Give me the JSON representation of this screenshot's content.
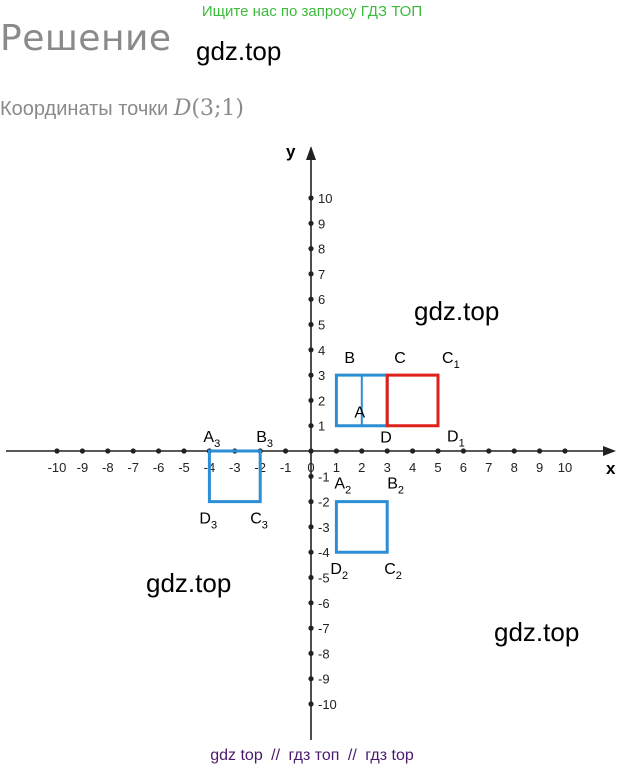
{
  "banner": "Ищите нас по запросу ГДЗ ТОП",
  "heading": "Решение",
  "subtitle": {
    "prefix": "Координаты точки",
    "point_letter": "D",
    "point_coords": "(3;1)"
  },
  "watermarks": [
    "gdz.top",
    "gdz.top",
    "gdz.top",
    "gdz.top"
  ],
  "bottom_links": [
    "gdz top",
    "//",
    "гдз топ",
    "//",
    "гдз top"
  ],
  "colors": {
    "blue": "#2c8fd6",
    "red": "#e0211b",
    "banner_green": "#3dbb3d",
    "link_purple": "#4a1a6e"
  },
  "chart_data": {
    "type": "diagram",
    "axes": {
      "x_label": "x",
      "y_label": "y",
      "x_range": [
        -10,
        10
      ],
      "y_range": [
        -10,
        10
      ],
      "x_ticks": [
        -10,
        -9,
        -8,
        -7,
        -6,
        -5,
        -4,
        -3,
        -2,
        -1,
        0,
        1,
        2,
        3,
        4,
        5,
        6,
        7,
        8,
        9,
        10
      ],
      "y_ticks": [
        -10,
        -9,
        -8,
        -7,
        -6,
        -5,
        -4,
        -3,
        -2,
        -1,
        1,
        2,
        3,
        4,
        5,
        6,
        7,
        8,
        9,
        10
      ]
    },
    "polygons": [
      {
        "vertices": [
          [
            1,
            3
          ],
          [
            3,
            3
          ],
          [
            3,
            1
          ],
          [
            1,
            1
          ]
        ],
        "color": "blue"
      },
      {
        "vertices": [
          [
            3,
            3
          ],
          [
            5,
            3
          ],
          [
            5,
            1
          ],
          [
            3,
            1
          ]
        ],
        "color": "red"
      },
      {
        "vertices": [
          [
            1,
            -2
          ],
          [
            3,
            -2
          ],
          [
            3,
            -4
          ],
          [
            1,
            -4
          ]
        ],
        "color": "blue"
      },
      {
        "vertices": [
          [
            -4,
            0
          ],
          [
            -2,
            0
          ],
          [
            -2,
            -2
          ],
          [
            -4,
            -2
          ]
        ],
        "color": "blue"
      }
    ],
    "inner_line": {
      "from": [
        2,
        3
      ],
      "to": [
        2,
        1
      ],
      "color": "blue"
    },
    "points": [
      {
        "name": "A",
        "sub": "",
        "x": 1,
        "y": 1
      },
      {
        "name": "B",
        "sub": "",
        "x": 1,
        "y": 3
      },
      {
        "name": "C",
        "sub": "",
        "x": 3,
        "y": 3
      },
      {
        "name": "D",
        "sub": "",
        "x": 3,
        "y": 1
      },
      {
        "name": "C",
        "sub": "1",
        "x": 5,
        "y": 3
      },
      {
        "name": "D",
        "sub": "1",
        "x": 5,
        "y": 1
      },
      {
        "name": "A",
        "sub": "2",
        "x": 1,
        "y": -2
      },
      {
        "name": "B",
        "sub": "2",
        "x": 3,
        "y": -2
      },
      {
        "name": "C",
        "sub": "2",
        "x": 3,
        "y": -4
      },
      {
        "name": "D",
        "sub": "2",
        "x": 1,
        "y": -4
      },
      {
        "name": "A",
        "sub": "3",
        "x": -4,
        "y": 0
      },
      {
        "name": "B",
        "sub": "3",
        "x": -2,
        "y": 0
      },
      {
        "name": "C",
        "sub": "3",
        "x": -2,
        "y": -2
      },
      {
        "name": "D",
        "sub": "3",
        "x": -4,
        "y": -2
      }
    ]
  }
}
